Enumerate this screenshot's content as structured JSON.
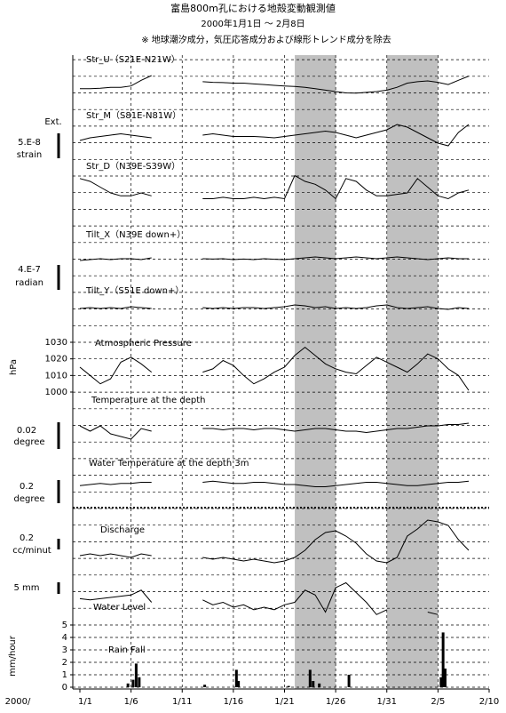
{
  "title": "富島800m孔における地殻変動観測値",
  "subtitle": "2000年1月1日 ～ 2月8日",
  "note": "※ 地球潮汐成分，気圧応答成分および線形トレンド成分を除去",
  "side_labels": [
    "Ext.",
    "5.E-8",
    "strain",
    "4.E-7",
    "radian",
    "hPa",
    "0.02",
    "degree",
    "0.2",
    "degree",
    "0.2",
    "cc/minut",
    "5 mm",
    "mm/hour"
  ],
  "x_axis": {
    "prefix": "2000/",
    "x": [
      0,
      1,
      2,
      3,
      4,
      5,
      6,
      7,
      8,
      9,
      10,
      11,
      12,
      13,
      14,
      15,
      16,
      17,
      18,
      19,
      20,
      21,
      22,
      23,
      24,
      25,
      26,
      27,
      28,
      29,
      30,
      31,
      32,
      33,
      34,
      35,
      36,
      37,
      38
    ],
    "xlim": [
      0,
      40
    ],
    "xticks": [
      {
        "value": 0,
        "label": "1/1"
      },
      {
        "value": 5,
        "label": "1/6"
      },
      {
        "value": 10,
        "label": "1/11"
      },
      {
        "value": 15,
        "label": "1/16"
      },
      {
        "value": 20,
        "label": "1/21"
      },
      {
        "value": 25,
        "label": "1/26"
      },
      {
        "value": 30,
        "label": "1/31"
      },
      {
        "value": 35,
        "label": "2/5"
      },
      {
        "value": 40,
        "label": "2/10"
      }
    ],
    "highlight_spans": [
      [
        21,
        25
      ],
      [
        30,
        35
      ]
    ]
  },
  "chart_data": [
    {
      "type": "line",
      "title": "Str_U（S21E-N21W）",
      "ylim": [
        -10,
        10
      ],
      "color": "#000000",
      "values": [
        -2,
        -2,
        -1.8,
        -1.5,
        -1.5,
        -1,
        1,
        2.7,
        null,
        null,
        null,
        null,
        0.5,
        0.3,
        0.2,
        0,
        0,
        -0.3,
        -0.5,
        -0.8,
        -1,
        -1.2,
        -1.5,
        -2,
        -2.5,
        -3,
        -3.5,
        -3.6,
        -3.3,
        -3,
        -2.5,
        -1.5,
        0,
        0.5,
        0.8,
        0.3,
        -0.5,
        1.0,
        2.5
      ]
    },
    {
      "type": "line",
      "title": "Str_M（S81E-N81W）",
      "ylim": [
        -10,
        10
      ],
      "color": "#000000",
      "values": [
        -1,
        0,
        0.5,
        1,
        1.5,
        1,
        0.5,
        0,
        null,
        null,
        null,
        null,
        1,
        1.5,
        1,
        0.5,
        0.5,
        0.5,
        0.3,
        0,
        0.5,
        1,
        1.5,
        2,
        2.5,
        2,
        1,
        0,
        1,
        2,
        3,
        5,
        4,
        2,
        0,
        -2,
        -3,
        2,
        5
      ]
    },
    {
      "type": "line",
      "title": "Str_D（N39E-S39W）",
      "ylim": [
        -10,
        10
      ],
      "color": "#000000",
      "values": [
        5,
        4,
        2,
        0,
        -1,
        -1,
        0,
        -1,
        null,
        null,
        null,
        null,
        -2,
        -2,
        -1.5,
        -2,
        -2,
        -1.5,
        -2,
        -1.5,
        -2,
        6,
        4,
        3,
        1,
        -2,
        5,
        4,
        1,
        -1,
        -1,
        -0.5,
        0,
        5,
        2,
        -1,
        -2,
        0,
        1
      ]
    },
    {
      "type": "line",
      "title": "Tilt_X（N39E down+）",
      "ylim": [
        -10,
        10
      ],
      "color": "#000000",
      "values": [
        -0.5,
        0,
        0.5,
        0,
        0.5,
        0.5,
        0,
        1,
        null,
        null,
        null,
        null,
        0.5,
        0.3,
        0.5,
        0,
        0.3,
        0,
        0.5,
        0.2,
        0,
        0.5,
        1,
        1.5,
        1,
        0.5,
        1,
        1.5,
        1,
        0.5,
        1,
        1.5,
        1,
        0.5,
        0,
        0.5,
        1,
        0.5,
        0.5
      ]
    },
    {
      "type": "line",
      "title": "Tilt_Y（S51E down+）",
      "ylim": [
        -10,
        10
      ],
      "color": "#000000",
      "values": [
        0,
        0.5,
        0,
        0.5,
        0,
        1,
        0.5,
        0,
        null,
        null,
        null,
        null,
        0.5,
        0,
        0.5,
        0,
        0.5,
        0.5,
        0,
        0.5,
        1,
        2,
        1.5,
        0.5,
        1,
        0,
        0.5,
        0,
        0.5,
        1.5,
        2,
        0.5,
        0,
        0.5,
        1,
        0,
        -0.5,
        0.5,
        0
      ]
    },
    {
      "type": "line",
      "title": "Atmospheric Pressure",
      "ylim": [
        1000,
        1030
      ],
      "yticks": [
        1000,
        1010,
        1020,
        1030
      ],
      "color": "#000000",
      "values": [
        1015,
        1010,
        1005,
        1008,
        1018,
        1021,
        1017,
        1012,
        null,
        null,
        null,
        null,
        1012,
        1014,
        1019,
        1016,
        1010,
        1005,
        1008,
        1012,
        1015,
        1022,
        1027,
        1022,
        1017,
        1014,
        1012,
        1011,
        1016,
        1021,
        1018,
        1015,
        1012,
        1017,
        1023,
        1020,
        1014,
        1010,
        1001
      ]
    },
    {
      "type": "line",
      "title": "Temperature at the depth",
      "ylim": [
        -10,
        10
      ],
      "color": "#000000",
      "values": [
        1,
        -1,
        1,
        -2,
        -3,
        -4,
        0,
        -1,
        null,
        null,
        null,
        null,
        0,
        0,
        -0.5,
        0,
        0,
        -0.5,
        0,
        0,
        -0.5,
        -1,
        -0.5,
        0,
        0,
        -0.5,
        -1,
        -1,
        -1.5,
        -1,
        -0.5,
        0,
        0,
        0.5,
        1,
        1,
        1.5,
        1.5,
        2
      ]
    },
    {
      "type": "line",
      "title": "Water Temperature at the depth 3m",
      "ylim": [
        -10,
        10
      ],
      "color": "#000000",
      "values": [
        -0.5,
        0,
        0.5,
        0,
        0.5,
        0.5,
        1,
        1,
        null,
        null,
        null,
        null,
        1,
        1.5,
        1,
        0.5,
        0.5,
        1,
        1,
        0.5,
        0,
        0,
        -0.5,
        -1,
        -1,
        -0.5,
        0,
        0.5,
        1,
        1,
        0.5,
        0,
        -0.5,
        -0.5,
        0,
        0.5,
        1,
        1,
        1.5
      ]
    },
    {
      "type": "line",
      "title": "Discharge",
      "ylim": [
        -10,
        10
      ],
      "color": "#000000",
      "values": [
        -2.5,
        -2,
        -2.5,
        -2,
        -2.5,
        -3,
        -2,
        -2.5,
        null,
        null,
        null,
        null,
        -3,
        -3.5,
        -3,
        -3.5,
        -4,
        -3.5,
        -4,
        -4.5,
        -4,
        -3,
        -1,
        2,
        4,
        4.5,
        3,
        1,
        -2,
        -4,
        -4.5,
        -3,
        3,
        5,
        7.5,
        7,
        6,
        2,
        -1
      ]
    },
    {
      "type": "line",
      "title": "Water Level",
      "ylim": [
        -10,
        10
      ],
      "color": "#000000",
      "values": [
        -0.5,
        -1,
        -0.5,
        0,
        0.5,
        1,
        3,
        -2,
        null,
        null,
        null,
        null,
        -1,
        -3,
        -2,
        -4,
        -3,
        -5,
        -4,
        -5,
        -3,
        -2,
        3,
        1,
        -6,
        4,
        6,
        2,
        -2,
        -7,
        -5,
        null,
        null,
        null,
        -6,
        -7,
        null,
        null,
        null
      ]
    },
    {
      "type": "bar",
      "title": "Rain Fall",
      "ylim": [
        0,
        5
      ],
      "yticks": [
        0,
        1,
        2,
        3,
        4,
        5
      ],
      "color": "#000000",
      "x": [
        4.7,
        5.2,
        5.5,
        5.8,
        12.2,
        15.3,
        15.5,
        20.4,
        22.5,
        22.8,
        23.4,
        26.3,
        35.3,
        35.5,
        35.7
      ],
      "values": [
        0.3,
        0.6,
        1.9,
        0.8,
        0.2,
        1.4,
        0.5,
        0.1,
        1.4,
        0.5,
        0.3,
        1.0,
        0.8,
        4.4,
        1.5
      ]
    }
  ]
}
